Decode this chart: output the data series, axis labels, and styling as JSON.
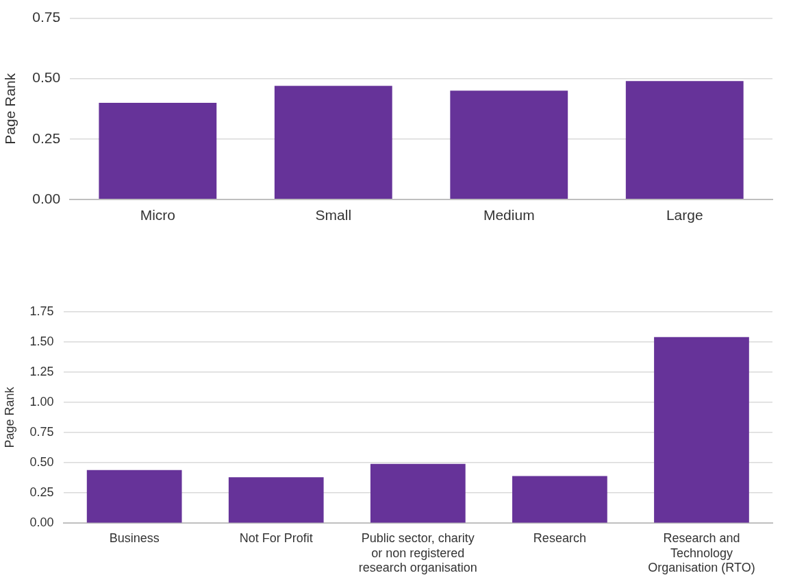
{
  "chart_data": [
    {
      "type": "bar",
      "ylabel": "Page Rank",
      "categories": [
        "Micro",
        "Small",
        "Medium",
        "Large"
      ],
      "values": [
        0.4,
        0.47,
        0.45,
        0.49
      ],
      "color": "#663399",
      "ylim": [
        0,
        0.75
      ],
      "yticks": [
        {
          "value": 0,
          "label": "0.00"
        },
        {
          "value": 0.25,
          "label": "0.25"
        },
        {
          "value": 0.5,
          "label": "0.50"
        },
        {
          "value": 0.75,
          "label": "0.75"
        }
      ],
      "grid": "y"
    },
    {
      "type": "bar",
      "ylabel": "Page Rank",
      "categories": [
        "Business",
        "Not For Profit",
        "Public sector, charity or non registered research organisation",
        "Research",
        "Research and Technology Organisation (RTO)"
      ],
      "values": [
        0.44,
        0.38,
        0.49,
        0.39,
        1.54
      ],
      "color": "#663399",
      "ylim": [
        0,
        1.75
      ],
      "yticks": [
        {
          "value": 0,
          "label": "0.00"
        },
        {
          "value": 0.25,
          "label": "0.25"
        },
        {
          "value": 0.5,
          "label": "0.50"
        },
        {
          "value": 0.75,
          "label": "0.75"
        },
        {
          "value": 1,
          "label": "1.00"
        },
        {
          "value": 1.25,
          "label": "1.25"
        },
        {
          "value": 1.5,
          "label": "1.50"
        },
        {
          "value": 1.75,
          "label": "1.75"
        }
      ],
      "grid": "y"
    }
  ]
}
